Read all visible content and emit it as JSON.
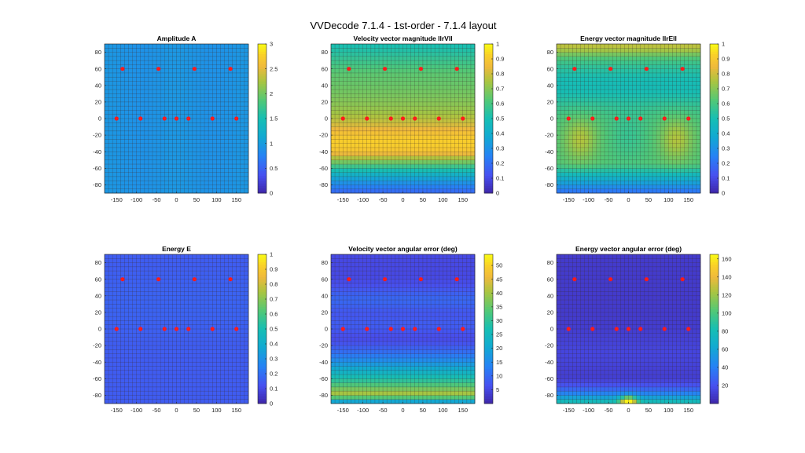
{
  "figure": {
    "title": "VVDecode 7.1.4 - 1st-order - 7.1.4 layout"
  },
  "chart_data": [
    {
      "type": "heatmap",
      "title": "Amplitude A",
      "field": "amplitude",
      "xlim": [
        -180,
        180
      ],
      "ylim": [
        -90,
        90
      ],
      "xticks": [
        -150,
        -100,
        -50,
        0,
        50,
        100,
        150
      ],
      "yticks": [
        80,
        60,
        40,
        20,
        0,
        -20,
        -40,
        -60,
        -80
      ],
      "clim": [
        0,
        3
      ],
      "cticks": [
        0,
        0.5,
        1,
        1.5,
        2,
        2.5,
        3
      ],
      "speakers": [
        [
          -135,
          60
        ],
        [
          -45,
          60
        ],
        [
          45,
          60
        ],
        [
          135,
          60
        ],
        [
          -150,
          0
        ],
        [
          -90,
          0
        ],
        [
          -30,
          0
        ],
        [
          0,
          0
        ],
        [
          30,
          0
        ],
        [
          90,
          0
        ],
        [
          150,
          0
        ]
      ]
    },
    {
      "type": "heatmap",
      "title": "Velocity vector magnitude llrVll",
      "field": "rv",
      "xlim": [
        -180,
        180
      ],
      "ylim": [
        -90,
        90
      ],
      "xticks": [
        -150,
        -100,
        -50,
        0,
        50,
        100,
        150
      ],
      "yticks": [
        80,
        60,
        40,
        20,
        0,
        -20,
        -40,
        -60,
        -80
      ],
      "clim": [
        0,
        1
      ],
      "cticks": [
        0,
        0.1,
        0.2,
        0.3,
        0.4,
        0.5,
        0.6,
        0.7,
        0.8,
        0.9,
        1
      ],
      "speakers": [
        [
          -135,
          60
        ],
        [
          -45,
          60
        ],
        [
          45,
          60
        ],
        [
          135,
          60
        ],
        [
          -150,
          0
        ],
        [
          -90,
          0
        ],
        [
          -30,
          0
        ],
        [
          0,
          0
        ],
        [
          30,
          0
        ],
        [
          90,
          0
        ],
        [
          150,
          0
        ]
      ]
    },
    {
      "type": "heatmap",
      "title": "Energy vector magnitude llrEll",
      "field": "re",
      "xlim": [
        -180,
        180
      ],
      "ylim": [
        -90,
        90
      ],
      "xticks": [
        -150,
        -100,
        -50,
        0,
        50,
        100,
        150
      ],
      "yticks": [
        80,
        60,
        40,
        20,
        0,
        -20,
        -40,
        -60,
        -80
      ],
      "clim": [
        0,
        1
      ],
      "cticks": [
        0,
        0.1,
        0.2,
        0.3,
        0.4,
        0.5,
        0.6,
        0.7,
        0.8,
        0.9,
        1
      ],
      "speakers": [
        [
          -135,
          60
        ],
        [
          -45,
          60
        ],
        [
          45,
          60
        ],
        [
          135,
          60
        ],
        [
          -150,
          0
        ],
        [
          -90,
          0
        ],
        [
          -30,
          0
        ],
        [
          0,
          0
        ],
        [
          30,
          0
        ],
        [
          90,
          0
        ],
        [
          150,
          0
        ]
      ]
    },
    {
      "type": "heatmap",
      "title": "Energy E",
      "field": "energy",
      "xlim": [
        -180,
        180
      ],
      "ylim": [
        -90,
        90
      ],
      "xticks": [
        -150,
        -100,
        -50,
        0,
        50,
        100,
        150
      ],
      "yticks": [
        80,
        60,
        40,
        20,
        0,
        -20,
        -40,
        -60,
        -80
      ],
      "clim": [
        0,
        1
      ],
      "cticks": [
        0,
        0.1,
        0.2,
        0.3,
        0.4,
        0.5,
        0.6,
        0.7,
        0.8,
        0.9,
        1
      ],
      "speakers": [
        [
          -135,
          60
        ],
        [
          -45,
          60
        ],
        [
          45,
          60
        ],
        [
          135,
          60
        ],
        [
          -150,
          0
        ],
        [
          -90,
          0
        ],
        [
          -30,
          0
        ],
        [
          0,
          0
        ],
        [
          30,
          0
        ],
        [
          90,
          0
        ],
        [
          150,
          0
        ]
      ]
    },
    {
      "type": "heatmap",
      "title": "Velocity vector angular error (deg)",
      "field": "verr",
      "xlim": [
        -180,
        180
      ],
      "ylim": [
        -90,
        90
      ],
      "xticks": [
        -150,
        -100,
        -50,
        0,
        50,
        100,
        150
      ],
      "yticks": [
        80,
        60,
        40,
        20,
        0,
        -20,
        -40,
        -60,
        -80
      ],
      "clim": [
        0,
        54
      ],
      "cticks": [
        5,
        10,
        15,
        20,
        25,
        30,
        35,
        40,
        45,
        50
      ],
      "speakers": [
        [
          -135,
          60
        ],
        [
          -45,
          60
        ],
        [
          45,
          60
        ],
        [
          135,
          60
        ],
        [
          -150,
          0
        ],
        [
          -90,
          0
        ],
        [
          -30,
          0
        ],
        [
          0,
          0
        ],
        [
          30,
          0
        ],
        [
          90,
          0
        ],
        [
          150,
          0
        ]
      ]
    },
    {
      "type": "heatmap",
      "title": "Energy vector angular error (deg)",
      "field": "eerr",
      "xlim": [
        -180,
        180
      ],
      "ylim": [
        -90,
        90
      ],
      "xticks": [
        -150,
        -100,
        -50,
        0,
        50,
        100,
        150
      ],
      "yticks": [
        80,
        60,
        40,
        20,
        0,
        -20,
        -40,
        -60,
        -80
      ],
      "clim": [
        0,
        165
      ],
      "cticks": [
        20,
        40,
        60,
        80,
        100,
        120,
        140,
        160
      ],
      "speakers": [
        [
          -135,
          60
        ],
        [
          -45,
          60
        ],
        [
          45,
          60
        ],
        [
          135,
          60
        ],
        [
          -150,
          0
        ],
        [
          -90,
          0
        ],
        [
          -30,
          0
        ],
        [
          0,
          0
        ],
        [
          30,
          0
        ],
        [
          90,
          0
        ],
        [
          150,
          0
        ]
      ]
    }
  ]
}
